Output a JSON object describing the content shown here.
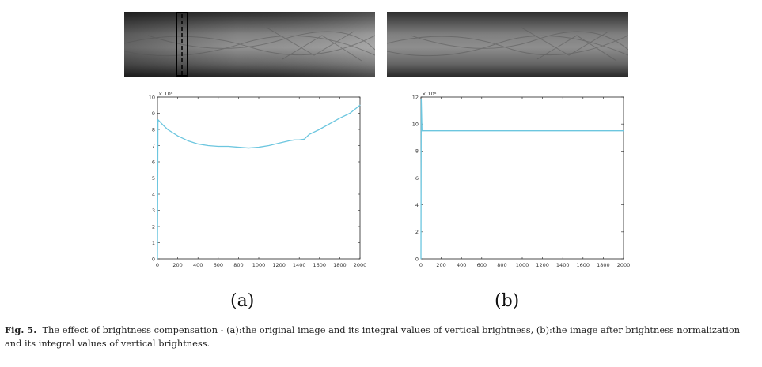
{
  "figure": {
    "panel_a_label": "(a)",
    "panel_b_label": "(b)",
    "caption_bold": "Fig. 5.",
    "caption_text": "The effect of brightness compensation - (a):the original image and its integral values of vertical brightness, (b):the image after brightness normalization and its integral values of vertical brightness."
  },
  "colors": {
    "line": "#6cc6df",
    "axis": "#222222",
    "strip_dark": "#2b2b2b",
    "strip_light": "#a8a8a8"
  },
  "chart_data": [
    {
      "type": "line",
      "panel": "(a)",
      "exponent_label": "× 10⁸",
      "xlim": [
        0,
        2000
      ],
      "ylim": [
        0,
        10
      ],
      "xticks": [
        "0",
        "200",
        "400",
        "600",
        "800",
        "1000",
        "1200",
        "1400",
        "1600",
        "1800",
        "2000"
      ],
      "yticks": [
        "0",
        "1",
        "2",
        "3",
        "4",
        "5",
        "6",
        "7",
        "8",
        "9",
        "10"
      ],
      "x": [
        0,
        5,
        50,
        100,
        200,
        300,
        400,
        500,
        600,
        700,
        800,
        900,
        1000,
        1100,
        1200,
        1300,
        1350,
        1400,
        1450,
        1500,
        1600,
        1700,
        1800,
        1900,
        2000
      ],
      "y": [
        0,
        8.6,
        8.3,
        8.0,
        7.6,
        7.3,
        7.1,
        7.0,
        6.95,
        6.95,
        6.9,
        6.85,
        6.9,
        7.0,
        7.15,
        7.3,
        7.35,
        7.35,
        7.4,
        7.7,
        8.0,
        8.35,
        8.7,
        9.0,
        9.5
      ]
    },
    {
      "type": "line",
      "panel": "(b)",
      "exponent_label": "× 10⁸",
      "xlim": [
        0,
        2000
      ],
      "ylim": [
        0,
        12
      ],
      "xticks": [
        "0",
        "200",
        "400",
        "600",
        "800",
        "1000",
        "1200",
        "1400",
        "1600",
        "1800",
        "2000"
      ],
      "yticks": [
        "0",
        "2",
        "4",
        "6",
        "8",
        "10",
        "12"
      ],
      "x": [
        0,
        3,
        10,
        2000
      ],
      "y": [
        0,
        11.8,
        9.5,
        9.5
      ]
    }
  ]
}
